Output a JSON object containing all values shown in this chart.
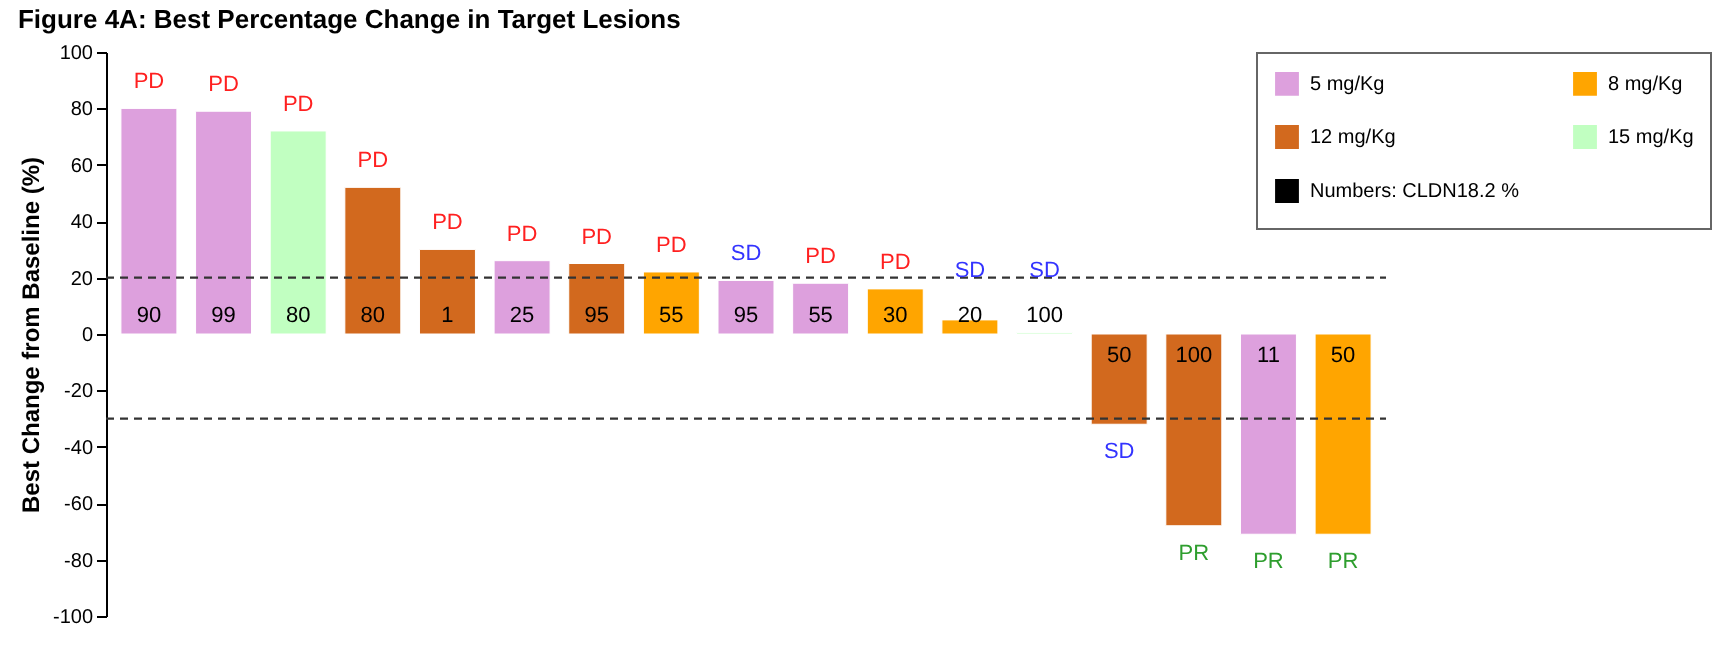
{
  "chart_data": {
    "type": "bar",
    "title": "Figure 4A: Best Percentage Change in Target Lesions",
    "ylabel": "Best Change from Baseline (%)",
    "categories": [
      null,
      null,
      null,
      null,
      null,
      null,
      null,
      null,
      null,
      null,
      null,
      null,
      null,
      null,
      null,
      null,
      null
    ],
    "series": [
      {
        "name": "5 mg/Kg",
        "color": "#dda0dd",
        "values": [
          80,
          79,
          null,
          null,
          null,
          26,
          null,
          null,
          19,
          18,
          null,
          null,
          null,
          null,
          null,
          -71,
          null
        ]
      },
      {
        "name": "12 mg/Kg",
        "color": "#d2691e",
        "values": [
          null,
          null,
          null,
          52,
          30,
          null,
          25,
          null,
          null,
          null,
          null,
          null,
          null,
          -32,
          -68,
          null,
          null
        ]
      },
      {
        "name": "Numbers: CLDN18.2 %",
        "color": "#000000",
        "values": [
          null,
          null,
          null,
          null,
          null,
          null,
          null,
          null,
          null,
          null,
          null,
          null,
          null,
          null,
          null,
          null,
          null
        ]
      },
      {
        "name": "8 mg/Kg",
        "color": "#ffa500",
        "values": [
          null,
          null,
          null,
          null,
          null,
          null,
          null,
          22,
          null,
          null,
          16,
          5,
          null,
          null,
          null,
          null,
          -71
        ]
      },
      {
        "name": "15 mg/Kg",
        "color": "#c1ffc1",
        "values": [
          null,
          null,
          72,
          null,
          null,
          null,
          null,
          null,
          null,
          null,
          null,
          null,
          0.5,
          null,
          null,
          null,
          null
        ]
      }
    ],
    "annotations": [
      {
        "text": "PD",
        "y": 80
      },
      {
        "text": "PD",
        "y": 79
      },
      {
        "text": "PD",
        "y": 72
      },
      {
        "text": "PD",
        "y": 52
      },
      {
        "text": "PD",
        "y": 30
      },
      {
        "text": "PD",
        "y": 26
      },
      {
        "text": "PD",
        "y": 25
      },
      {
        "text": "PD",
        "y": 22
      },
      {
        "text": "SD",
        "y": 19
      },
      {
        "text": "PD",
        "y": 18
      },
      {
        "text": "PD",
        "y": 16
      },
      {
        "text": "SD",
        "y": 5
      },
      {
        "text": "SD",
        "y": 0.5
      },
      {
        "text": "SD",
        "y": -32
      },
      {
        "text": "PR",
        "y": -68
      },
      {
        "text": "PR",
        "y": -71
      },
      {
        "text": "PR",
        "y": -71
      },
      {
        "text": "90",
        "y": 0
      },
      {
        "text": "99",
        "y": 0
      },
      {
        "text": "80",
        "y": 0
      },
      {
        "text": "80",
        "y": 0
      },
      {
        "text": "1",
        "y": 0
      },
      {
        "text": "25",
        "y": 0
      },
      {
        "text": "95",
        "y": 0
      },
      {
        "text": "55",
        "y": 0
      },
      {
        "text": "95",
        "y": 0
      },
      {
        "text": "55",
        "y": 0
      },
      {
        "text": "30",
        "y": 0
      },
      {
        "text": "20",
        "y": 0
      },
      {
        "text": "100",
        "y": 0
      },
      {
        "text": "50",
        "y": 0
      },
      {
        "text": "100",
        "y": 0
      },
      {
        "text": "11",
        "y": 0
      },
      {
        "text": "50",
        "y": 0
      }
    ],
    "ref_lines": [
      {
        "axis": "y",
        "value": 20,
        "line_style": "dashed",
        "color": "#333333"
      },
      {
        "axis": "y",
        "value": -30,
        "line_style": "dashed",
        "color": "#333333"
      }
    ],
    "ylim": [
      -100,
      100
    ],
    "yticks": [
      -100,
      -80,
      -60,
      -40,
      -20,
      0,
      20,
      40,
      60,
      80,
      100
    ],
    "grid": false,
    "legend": "top right",
    "tick_labels": "y"
  }
}
